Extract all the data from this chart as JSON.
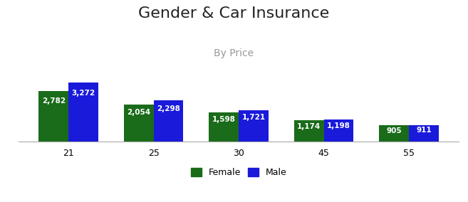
{
  "title": "Gender & Car Insurance",
  "subtitle": "By Price",
  "categories": [
    "21",
    "25",
    "30",
    "45",
    "55"
  ],
  "female_values": [
    2782,
    2054,
    1598,
    1174,
    905
  ],
  "male_values": [
    3272,
    2298,
    1721,
    1198,
    911
  ],
  "female_color": "#1a6b1a",
  "male_color": "#1a1adb",
  "bar_width": 0.35,
  "ylim": [
    0,
    3700
  ],
  "title_fontsize": 16,
  "subtitle_fontsize": 10,
  "subtitle_color": "#999999",
  "label_fontsize": 7.5,
  "label_color": "#ffffff",
  "legend_fontsize": 9,
  "tick_fontsize": 9,
  "background_color": "#ffffff"
}
